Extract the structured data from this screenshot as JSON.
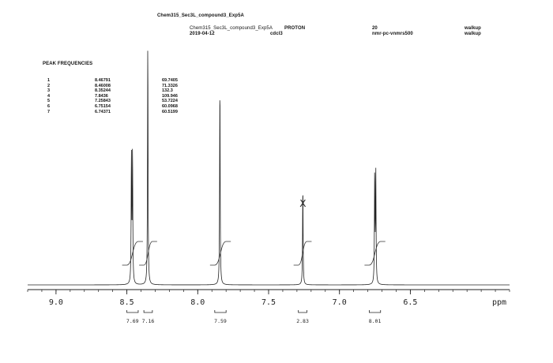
{
  "header": {
    "top_title": "Chem315_Sec3L_compound3_Exp5A",
    "file_name": "Chem315_Sec3L_compound3_Exp5A",
    "date": "2019-04-12",
    "solvent": "cdcl3",
    "experiment": "PROTON",
    "temperature": "20",
    "instrument": "nmr-pc-vnmrs500",
    "operator_1": "walkup",
    "operator_2": "walkup"
  },
  "peak_table": {
    "title": "PEAK FREQUENCIES",
    "rows": [
      {
        "index": "1",
        "ppm": "8.46791",
        "height": "69.7405"
      },
      {
        "index": "2",
        "ppm": "8.46008",
        "height": "71.3326"
      },
      {
        "index": "3",
        "ppm": "8.35244",
        "height": "132.3"
      },
      {
        "index": "4",
        "ppm": "7.8436",
        "height": "109.946"
      },
      {
        "index": "5",
        "ppm": "7.25843",
        "height": "53.7224"
      },
      {
        "index": "6",
        "ppm": "6.75154",
        "height": "60.0968"
      },
      {
        "index": "7",
        "ppm": "6.74371",
        "height": "60.5199"
      }
    ]
  },
  "chart_data": {
    "type": "line",
    "title": "",
    "xlabel": "ppm",
    "ylabel": "",
    "xlim": [
      9.2,
      5.8
    ],
    "x_reversed": true,
    "grid": false,
    "x_ticks": [
      "9.0",
      "8.5",
      "8.0",
      "7.5",
      "7.0",
      "6.5"
    ],
    "x_tick_values": [
      9.0,
      8.5,
      8.0,
      7.5,
      7.0,
      6.5
    ],
    "peaks": [
      {
        "ppm": 8.46791,
        "height": 69.7405
      },
      {
        "ppm": 8.46008,
        "height": 71.3326
      },
      {
        "ppm": 8.35244,
        "height": 132.3
      },
      {
        "ppm": 7.8436,
        "height": 109.946
      },
      {
        "ppm": 7.25843,
        "height": 53.7224
      },
      {
        "ppm": 6.75154,
        "height": 60.0968
      },
      {
        "ppm": 6.74371,
        "height": 60.5199
      }
    ],
    "solvent_marker": {
      "ppm": 7.25843,
      "symbol": "X"
    },
    "integrals": [
      {
        "from": 8.5,
        "to": 8.42,
        "value": "7.69"
      },
      {
        "from": 8.38,
        "to": 8.32,
        "value": "7.16"
      },
      {
        "from": 7.88,
        "to": 7.8,
        "value": "7.59"
      },
      {
        "from": 7.29,
        "to": 7.23,
        "value": "2.83"
      },
      {
        "from": 6.79,
        "to": 6.71,
        "value": "8.01"
      }
    ]
  }
}
